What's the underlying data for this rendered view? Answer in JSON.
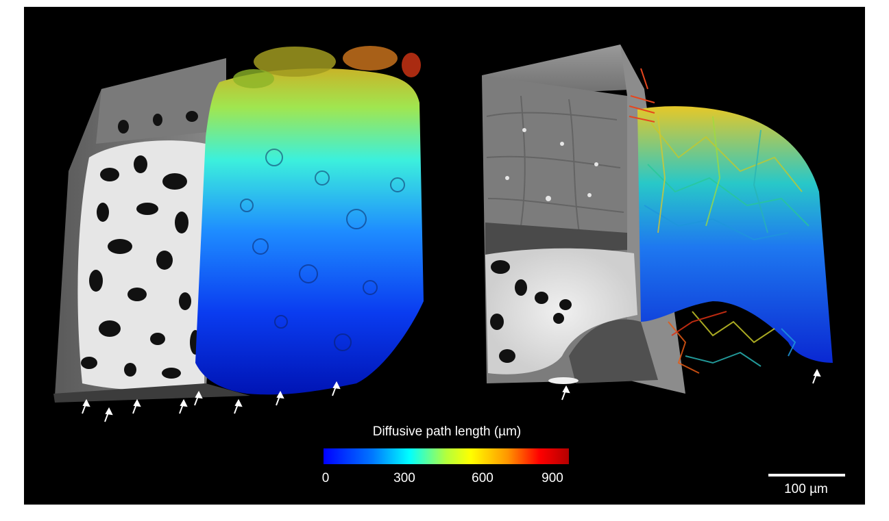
{
  "colorbar": {
    "title": "Diffusive path length (µm)",
    "ticks": [
      "0",
      "300",
      "600",
      "900"
    ],
    "colors": [
      "#0000ff",
      "#0078ff",
      "#00ffff",
      "#b4ff3c",
      "#ffff00",
      "#ff9600",
      "#ff0000",
      "#b40000"
    ]
  },
  "scale_bar": {
    "label": "100 µm"
  },
  "panels": [
    {
      "name": "left-volume-render",
      "arrow_count": 9
    },
    {
      "name": "right-volume-render",
      "arrow_count": 2
    }
  ]
}
